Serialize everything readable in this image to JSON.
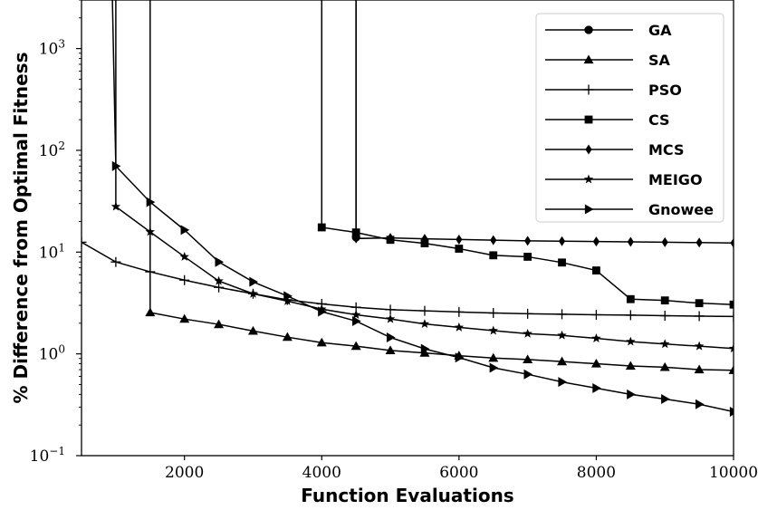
{
  "chart_data": {
    "type": "line",
    "xlabel": "Function Evaluations",
    "ylabel": "% Difference from Optimal Fitness",
    "xlim": [
      500,
      10000
    ],
    "ylim": [
      0.1,
      3000
    ],
    "yscale": "log",
    "grid": false,
    "legend_position": "top-right",
    "x_ticks": [
      2000,
      4000,
      6000,
      8000,
      10000
    ],
    "y_ticks": [
      {
        "value": 0.1,
        "base": "10",
        "exp": "−1"
      },
      {
        "value": 1,
        "base": "10",
        "exp": "0"
      },
      {
        "value": 10,
        "base": "10",
        "exp": "1"
      },
      {
        "value": 100,
        "base": "10",
        "exp": "2"
      },
      {
        "value": 1000,
        "base": "10",
        "exp": "3"
      }
    ],
    "series": [
      {
        "name": "GA",
        "marker": "circle",
        "color": "#000000",
        "x": [
          4500,
          4500
        ],
        "y": [
          3000,
          14
        ]
      },
      {
        "name": "SA",
        "marker": "triangle-up",
        "color": "#000000",
        "x": [
          1500,
          1500,
          2000,
          2500,
          3000,
          3500,
          4000,
          4500,
          5000,
          5500,
          6000,
          6500,
          7000,
          7500,
          8000,
          8500,
          9000,
          9500,
          10000
        ],
        "y": [
          3000,
          2.55,
          2.2,
          1.95,
          1.68,
          1.46,
          1.29,
          1.19,
          1.08,
          1.02,
          0.96,
          0.91,
          0.88,
          0.84,
          0.8,
          0.76,
          0.74,
          0.7,
          0.69
        ]
      },
      {
        "name": "PSO",
        "marker": "plus",
        "color": "#000000",
        "x": [
          500,
          1000,
          1500,
          2000,
          2500,
          3000,
          3500,
          4000,
          4500,
          5000,
          5500,
          6000,
          6500,
          7000,
          7500,
          8000,
          8500,
          9000,
          9500,
          10000
        ],
        "y": [
          12.5,
          8.0,
          6.4,
          5.3,
          4.5,
          3.9,
          3.4,
          3.1,
          2.87,
          2.72,
          2.65,
          2.58,
          2.52,
          2.48,
          2.45,
          2.42,
          2.4,
          2.37,
          2.35,
          2.33
        ]
      },
      {
        "name": "CS",
        "marker": "square",
        "color": "#000000",
        "x": [
          4000,
          4000,
          4500,
          5000,
          5500,
          6000,
          6500,
          7000,
          7500,
          8000,
          8500,
          9000,
          9500,
          10000
        ],
        "y": [
          3000,
          17.5,
          15.6,
          13.2,
          12.2,
          10.8,
          9.3,
          9.0,
          7.9,
          6.6,
          3.45,
          3.35,
          3.15,
          3.05
        ]
      },
      {
        "name": "MCS",
        "marker": "diamond",
        "color": "#000000",
        "x": [
          4500,
          4500,
          5000,
          5500,
          6000,
          6500,
          7000,
          7500,
          8000,
          8500,
          9000,
          9500,
          10000
        ],
        "y": [
          3000,
          13.6,
          13.8,
          13.5,
          13.3,
          13.1,
          12.9,
          12.8,
          12.7,
          12.6,
          12.5,
          12.4,
          12.3
        ]
      },
      {
        "name": "MEIGO",
        "marker": "star",
        "color": "#000000",
        "x": [
          1000,
          1000,
          1500,
          2000,
          2500,
          3000,
          3500,
          4000,
          4500,
          5000,
          5500,
          6000,
          6500,
          7000,
          7500,
          8000,
          8500,
          9000,
          9500,
          10000
        ],
        "y": [
          3000,
          28,
          15.8,
          9.0,
          5.2,
          3.9,
          3.3,
          2.75,
          2.42,
          2.2,
          1.97,
          1.82,
          1.69,
          1.58,
          1.52,
          1.42,
          1.32,
          1.25,
          1.19,
          1.13
        ]
      },
      {
        "name": "Gnowee",
        "marker": "triangle-right",
        "color": "#000000",
        "x": [
          950,
          1000,
          1500,
          2000,
          2500,
          3000,
          3500,
          4000,
          4500,
          5000,
          5500,
          6000,
          6500,
          7000,
          7500,
          8000,
          8500,
          9000,
          9500,
          10000
        ],
        "y": [
          3000,
          70,
          31,
          16.5,
          8.0,
          5.1,
          3.7,
          2.6,
          2.1,
          1.45,
          1.12,
          0.92,
          0.73,
          0.63,
          0.53,
          0.46,
          0.4,
          0.36,
          0.32,
          0.27
        ]
      }
    ]
  }
}
